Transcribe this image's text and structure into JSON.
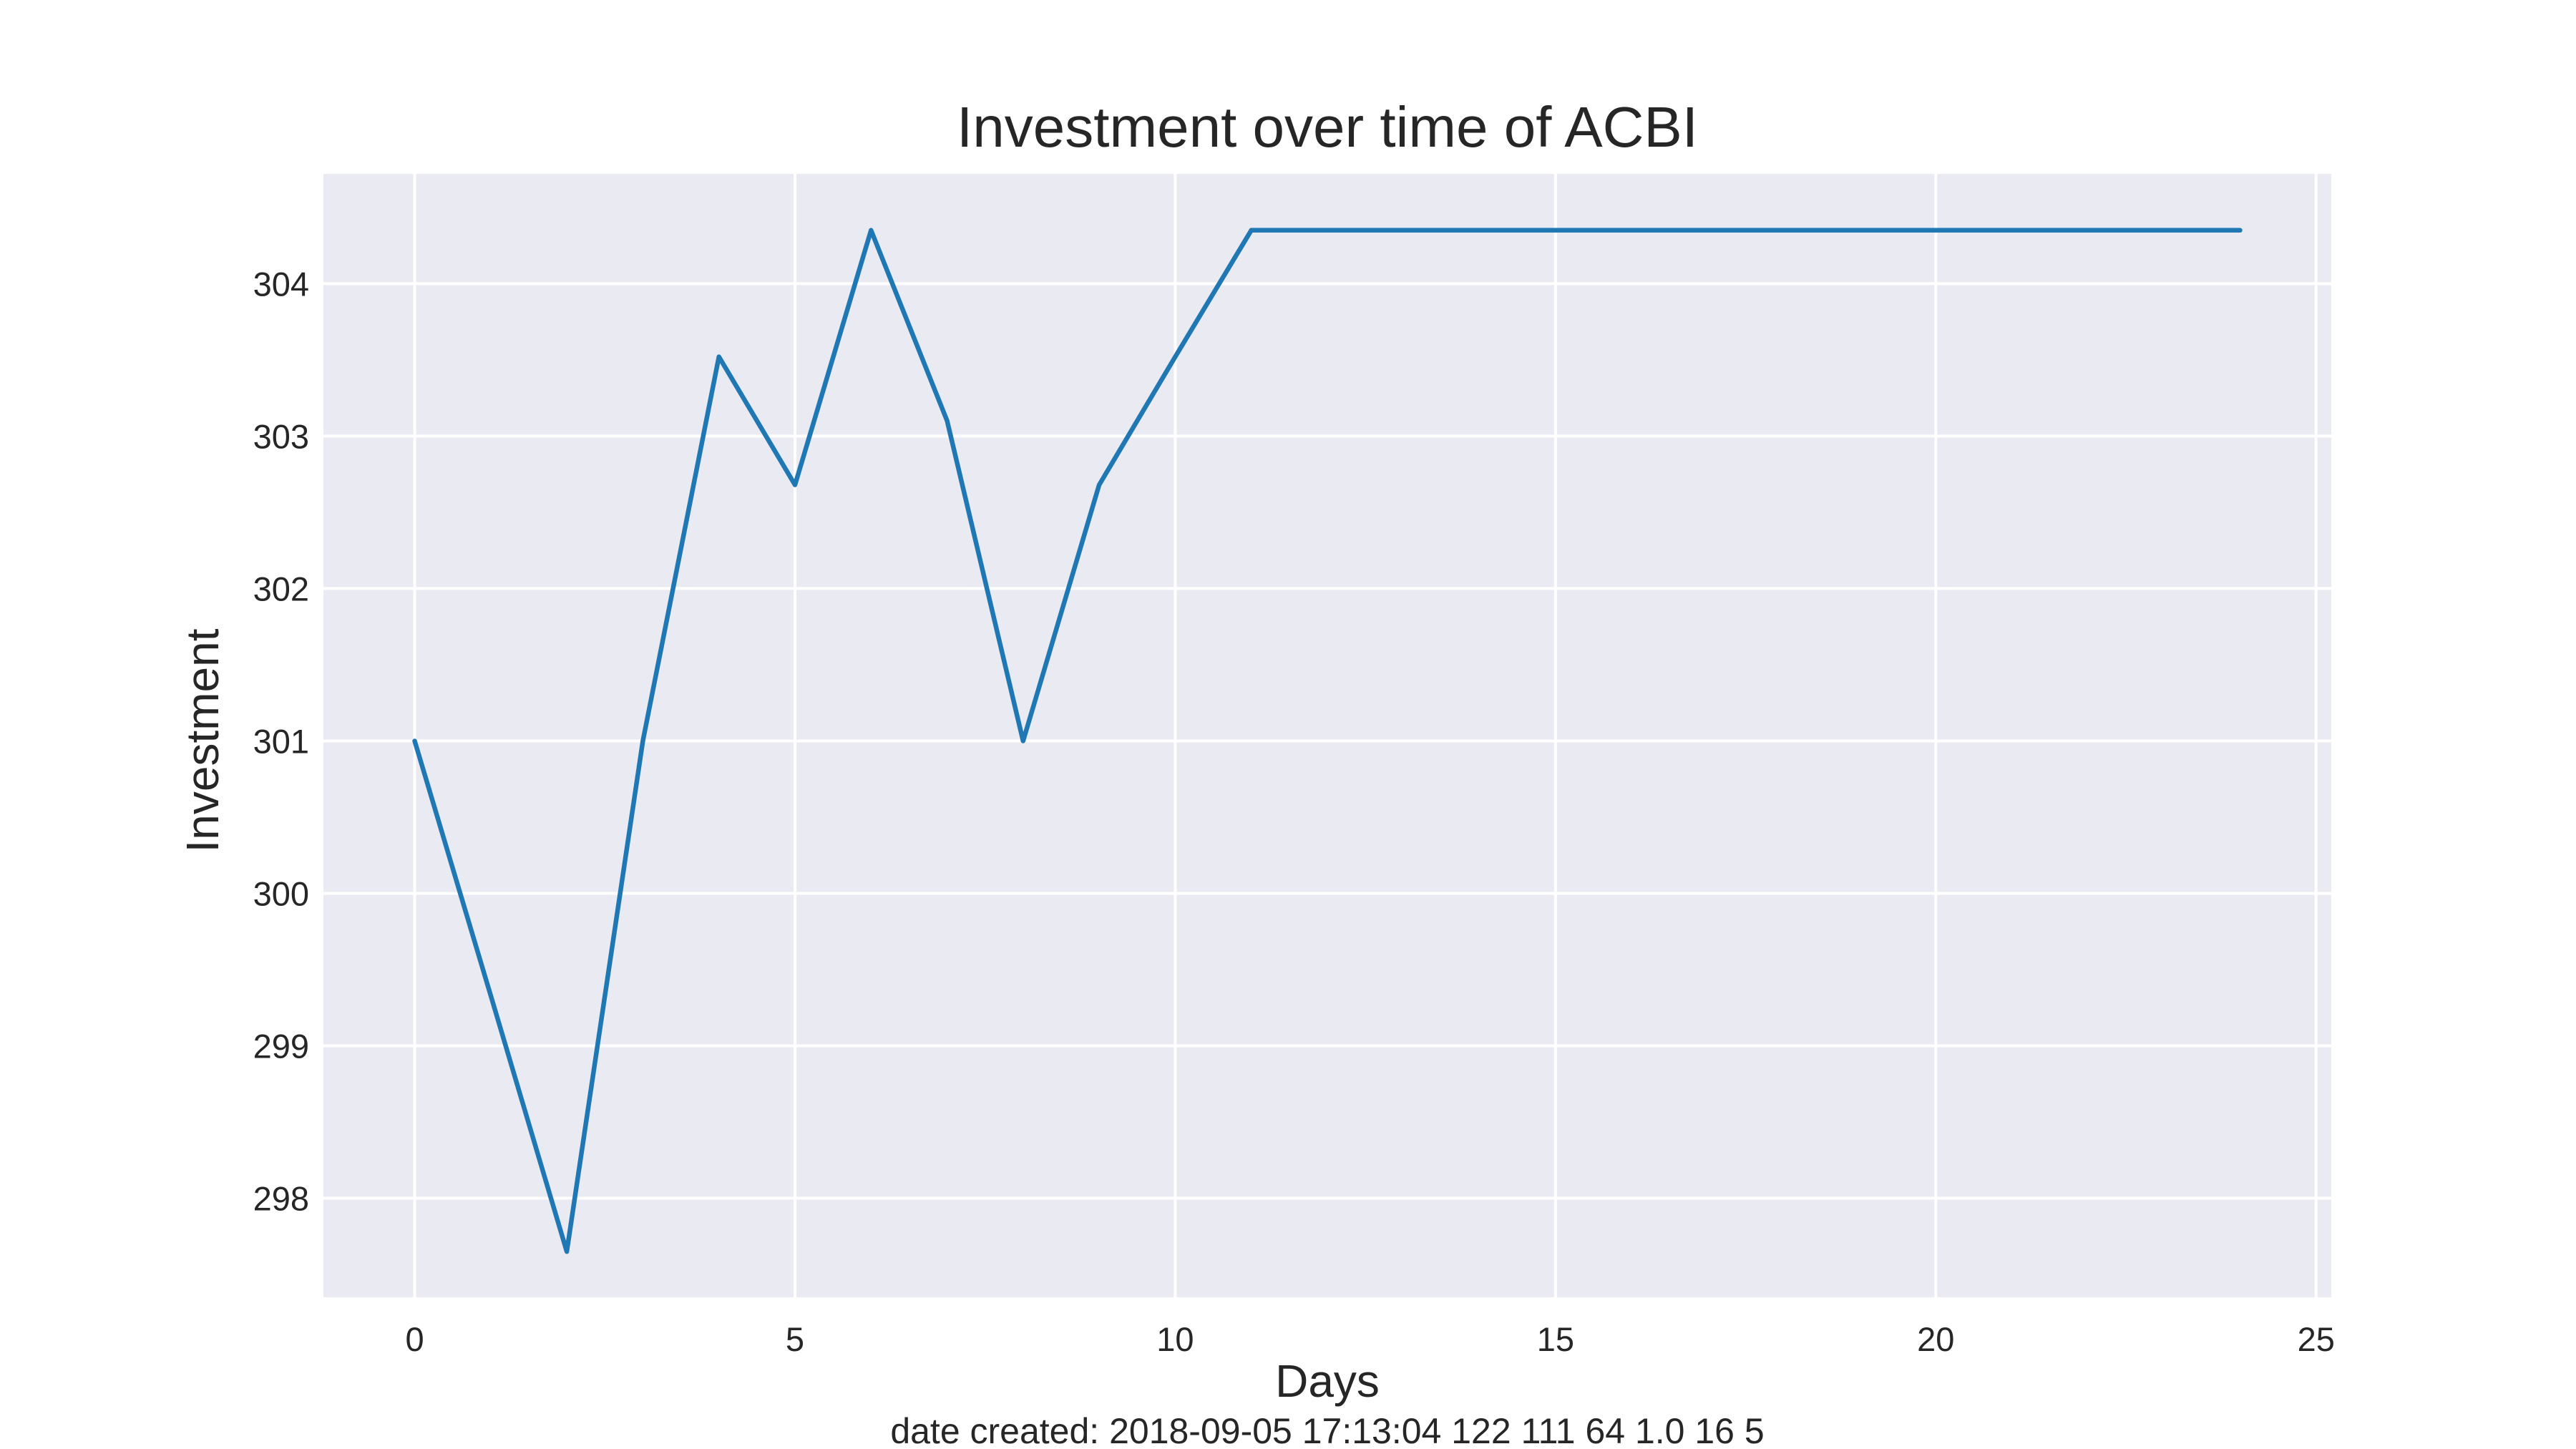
{
  "chart_data": {
    "type": "line",
    "title": "Investment over time of ACBI",
    "xlabel": "Days",
    "ylabel": "Investment",
    "footer": "date created: 2018-09-05 17:13:04 122 111 64 1.0 16 5",
    "xlim": [
      -1.2,
      25.2
    ],
    "ylim": [
      297.35,
      304.72
    ],
    "xticks": [
      0,
      5,
      10,
      15,
      20,
      25
    ],
    "yticks": [
      298,
      299,
      300,
      301,
      302,
      303,
      304
    ],
    "grid": true,
    "colors": {
      "background": "#eaeaf2",
      "grid": "#ffffff",
      "line": "#1f77b4"
    },
    "series": [
      {
        "color": "#1f77b4",
        "x": [
          0,
          1,
          2,
          3,
          4,
          5,
          6,
          7,
          8,
          9,
          10,
          11,
          12,
          13,
          14,
          15,
          16,
          17,
          18,
          19,
          20,
          21,
          22,
          23,
          24
        ],
        "y": [
          301.0,
          299.33,
          297.65,
          301.0,
          303.52,
          302.68,
          304.35,
          303.1,
          301.0,
          302.68,
          303.52,
          304.35,
          304.35,
          304.35,
          304.35,
          304.35,
          304.35,
          304.35,
          304.35,
          304.35,
          304.35,
          304.35,
          304.35,
          304.35,
          304.35
        ]
      }
    ]
  }
}
